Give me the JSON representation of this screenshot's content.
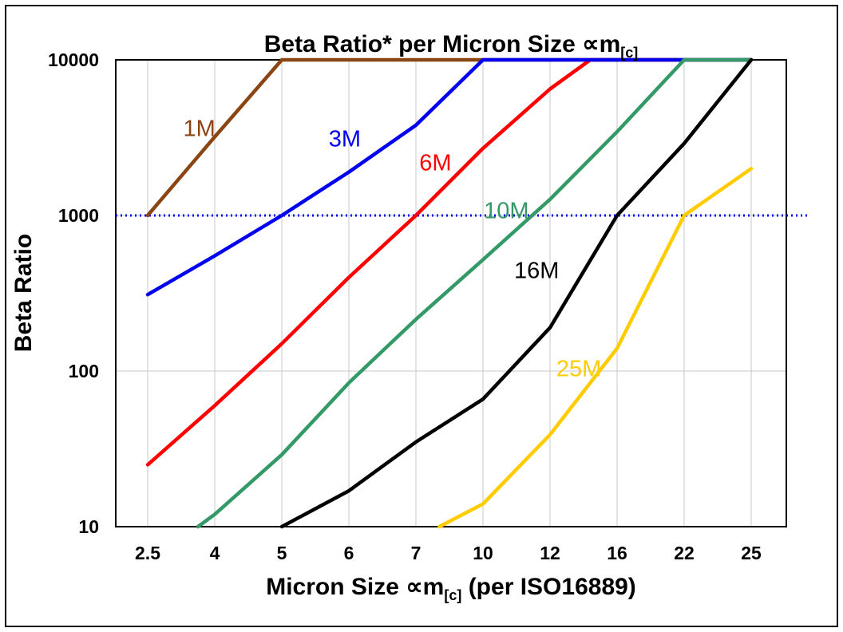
{
  "title": {
    "prefix": "Beta Ratio* per Micron Size ",
    "symbol": "∝m",
    "subscript": "[c]"
  },
  "axes": {
    "y_label": "Beta Ratio",
    "x_label": {
      "prefix": "Micron Size ",
      "symbol": "∝m",
      "subscript": "[c]",
      "suffix": " (per ISO16889)"
    },
    "y_ticks": [
      "10000",
      "1000",
      "100",
      "10"
    ],
    "x_ticks": [
      "2.5",
      "4",
      "5",
      "6",
      "7",
      "10",
      "12",
      "16",
      "22",
      "25"
    ]
  },
  "chart_data": {
    "type": "line",
    "title": "Beta Ratio* per Micron Size ∝m[c]",
    "xlabel": "Micron Size ∝m[c] (per ISO16889)",
    "ylabel": "Beta Ratio",
    "x_scale": "categorical",
    "y_scale": "log",
    "ylim": [
      10,
      10000
    ],
    "grid": true,
    "categories": [
      "2.5",
      "4",
      "5",
      "6",
      "7",
      "10",
      "12",
      "16",
      "22",
      "25"
    ],
    "reference_line": {
      "y": 1000,
      "color": "#0000EE",
      "style": "dotted"
    },
    "series": [
      {
        "name": "6M",
        "color": "#FF0000",
        "points": [
          [
            0,
            25
          ],
          [
            1,
            60
          ],
          [
            2,
            150
          ],
          [
            3,
            400
          ],
          [
            4,
            1000
          ],
          [
            5,
            2700
          ],
          [
            6,
            6500
          ],
          [
            6.6,
            10000
          ],
          [
            9,
            10000
          ]
        ]
      },
      {
        "name": "1M",
        "color": "#8B4513",
        "points": [
          [
            0,
            1000
          ],
          [
            1,
            3200
          ],
          [
            2,
            10000
          ],
          [
            9,
            10000
          ]
        ]
      },
      {
        "name": "3M",
        "color": "#0000EE",
        "points": [
          [
            0,
            310
          ],
          [
            1,
            550
          ],
          [
            2,
            1000
          ],
          [
            3,
            1900
          ],
          [
            4,
            3800
          ],
          [
            5,
            10000
          ],
          [
            9,
            10000
          ]
        ]
      },
      {
        "name": "10M",
        "color": "#339966",
        "points": [
          [
            0.75,
            10
          ],
          [
            1,
            12
          ],
          [
            2,
            29
          ],
          [
            3,
            84
          ],
          [
            4,
            215
          ],
          [
            5,
            520
          ],
          [
            6,
            1270
          ],
          [
            7,
            3450
          ],
          [
            8,
            10000
          ],
          [
            9,
            10000
          ]
        ]
      },
      {
        "name": "16M",
        "color": "#000000",
        "points": [
          [
            2,
            10
          ],
          [
            3,
            17
          ],
          [
            4,
            35
          ],
          [
            5,
            66
          ],
          [
            6,
            190
          ],
          [
            7,
            1000
          ],
          [
            8,
            2900
          ],
          [
            9,
            10000
          ]
        ]
      },
      {
        "name": "25M",
        "color": "#FFCC00",
        "points": [
          [
            4.35,
            10
          ],
          [
            5,
            14
          ],
          [
            6,
            39
          ],
          [
            7,
            140
          ],
          [
            8,
            1000
          ],
          [
            9,
            2000
          ]
        ]
      }
    ],
    "annotations": [
      {
        "text": "1M",
        "color": "#8B4513",
        "x": 0.77,
        "y": 3600
      },
      {
        "text": "3M",
        "color": "#0000EE",
        "x": 2.94,
        "y": 3070
      },
      {
        "text": "6M",
        "color": "#FF0000",
        "x": 4.29,
        "y": 2160
      },
      {
        "text": "10M",
        "color": "#339966",
        "x": 5.35,
        "y": 1060
      },
      {
        "text": "16M",
        "color": "#000000",
        "x": 5.8,
        "y": 440
      },
      {
        "text": "25M",
        "color": "#FFCC00",
        "x": 6.43,
        "y": 102
      }
    ]
  }
}
